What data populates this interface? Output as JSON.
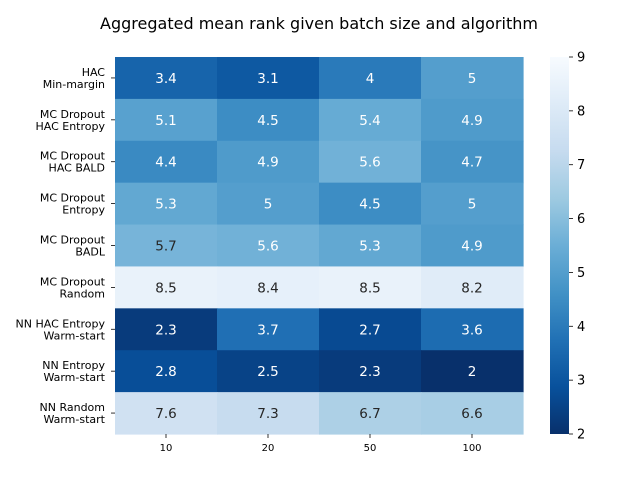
{
  "chart_data": {
    "type": "heatmap",
    "title": "Aggregated mean rank given batch size and algorithm",
    "xlabel": "",
    "ylabel": "",
    "x_categories": [
      "10",
      "20",
      "50",
      "100"
    ],
    "y_categories": [
      [
        "HAC",
        "Min-margin"
      ],
      [
        "MC Dropout",
        "HAC Entropy"
      ],
      [
        "MC Dropout",
        "HAC BALD"
      ],
      [
        "MC Dropout",
        "Entropy"
      ],
      [
        "MC Dropout",
        "BADL"
      ],
      [
        "MC Dropout",
        "Random"
      ],
      [
        "NN HAC Entropy",
        "Warm-start"
      ],
      [
        "NN Entropy",
        "Warm-start"
      ],
      [
        "NN Random",
        "Warm-start"
      ]
    ],
    "values": [
      [
        3.4,
        3.1,
        4,
        5
      ],
      [
        5.1,
        4.5,
        5.4,
        4.9
      ],
      [
        4.4,
        4.9,
        5.6,
        4.7
      ],
      [
        5.3,
        5,
        4.5,
        5
      ],
      [
        5.7,
        5.6,
        5.3,
        4.9
      ],
      [
        8.5,
        8.4,
        8.5,
        8.2
      ],
      [
        2.3,
        3.7,
        2.7,
        3.6
      ],
      [
        2.8,
        2.5,
        2.3,
        2
      ],
      [
        7.6,
        7.3,
        6.7,
        6.6
      ]
    ],
    "colorbar": {
      "min": 2,
      "max": 9,
      "ticks": [
        "2",
        "3",
        "4",
        "5",
        "6",
        "7",
        "8",
        "9"
      ],
      "colormap": "Blues_r"
    }
  }
}
